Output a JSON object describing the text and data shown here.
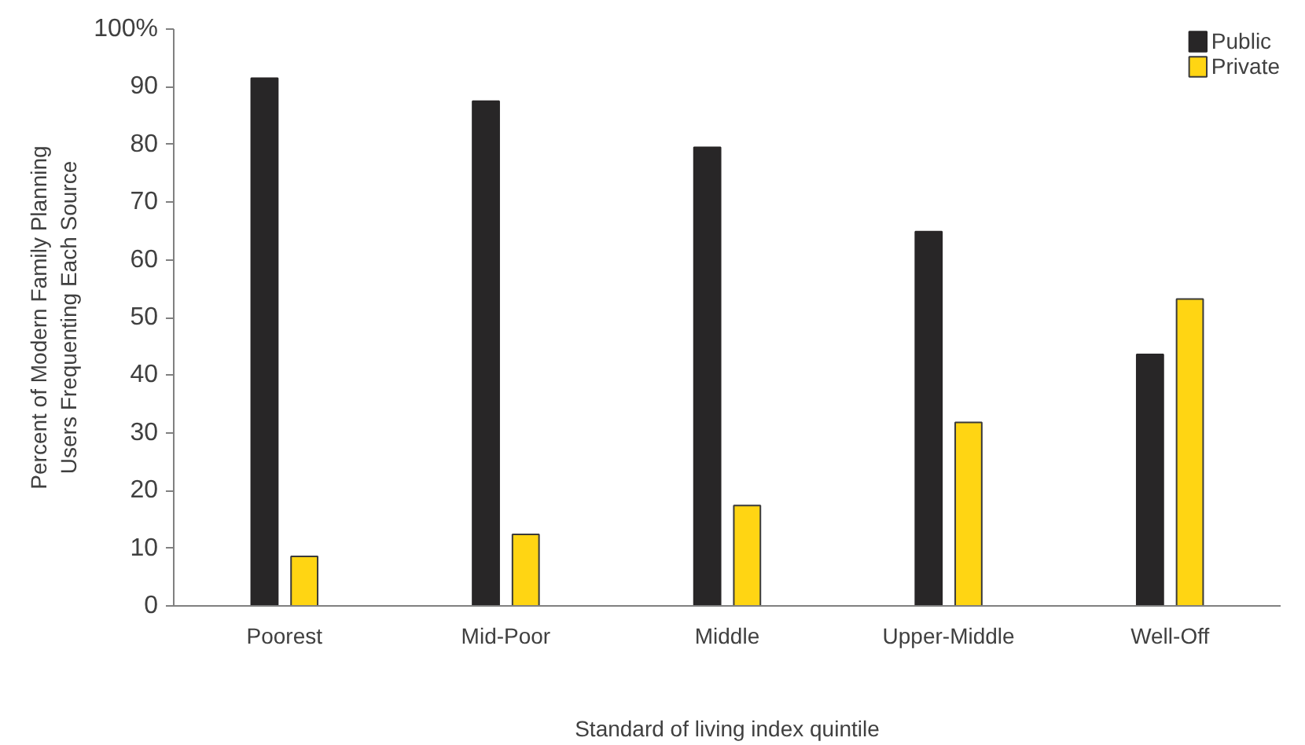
{
  "chart_data": {
    "type": "bar",
    "xlabel": "Standard of living index quintile",
    "ylabel": "Percent of Modern Family Planning\nUsers Frequenting Each Source",
    "categories": [
      "Poorest",
      "Mid-Poor",
      "Middle",
      "Upper-Middle",
      "Well-Off"
    ],
    "series": [
      {
        "name": "Public",
        "color": "#282627",
        "values": [
          91.5,
          87.5,
          79.5,
          64.9,
          43.6
        ]
      },
      {
        "name": "Private",
        "color": "#ffd513",
        "values": [
          8.6,
          12.4,
          17.4,
          31.8,
          53.2
        ]
      }
    ],
    "ylim": [
      0,
      100
    ],
    "yticks": [
      0,
      10,
      20,
      30,
      40,
      50,
      60,
      70,
      80,
      90,
      {
        "value": 100,
        "label": "100%"
      }
    ],
    "grid": false,
    "legend": "top right"
  }
}
